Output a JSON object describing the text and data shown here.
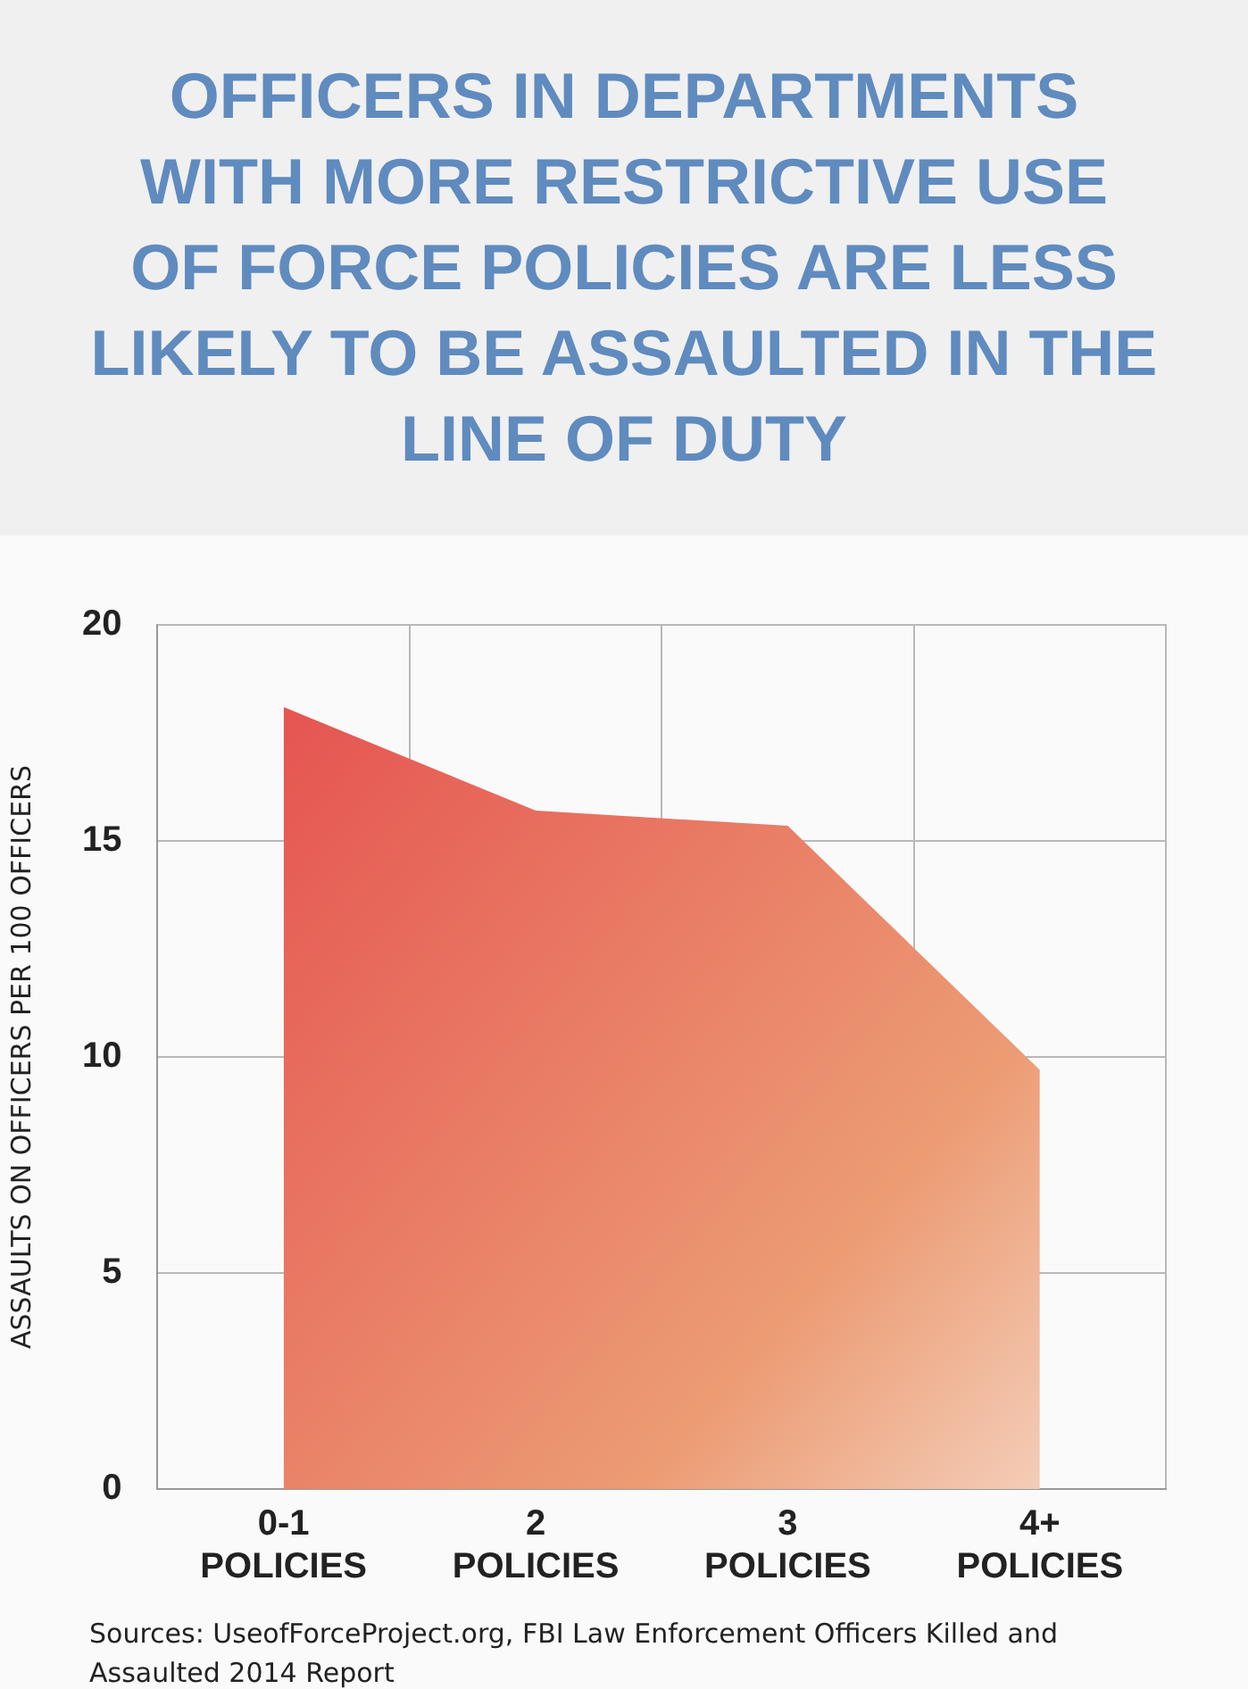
{
  "chart_data": {
    "type": "area",
    "title": "OFFICERS IN DEPARTMENTS WITH MORE RESTRICTIVE USE OF FORCE POLICIES ARE LESS LIKELY TO BE ASSAULTED IN THE LINE OF DUTY",
    "ylabel": "ASSAULTS ON OFFICERS PER 100 OFFICERS",
    "categories": [
      "0-1 POLICIES",
      "2 POLICIES",
      "3 POLICIES",
      "4+ POLICIES"
    ],
    "series": [
      {
        "color": "#e4474b",
        "values": [
          18.1,
          15.7,
          15.35,
          9.7
        ]
      }
    ],
    "ylim": [
      0,
      20
    ],
    "yticks": [
      0,
      5,
      10,
      15,
      20
    ],
    "grid": true,
    "annotations": [
      "Sources: UseofForceProject.org, FBI Law Enforcement Officers Killed and Assaulted 2014 Report"
    ]
  }
}
